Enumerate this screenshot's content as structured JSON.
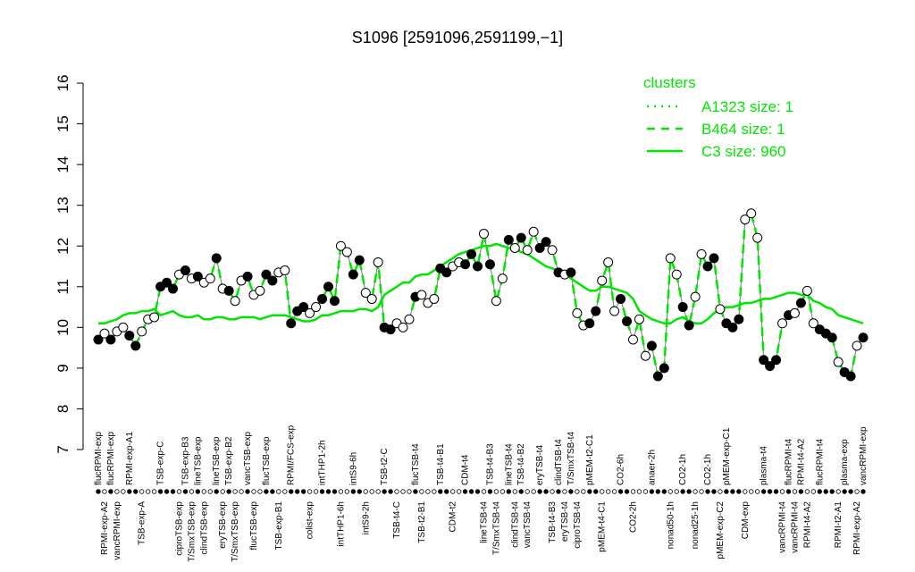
{
  "chart_data": {
    "type": "line",
    "title": "S1096 [2591096,2591199,−1]",
    "categories": [
      "flucRPMI-exp",
      "RPMI-exp-A2",
      "flucRPMI-exp",
      "vancRPMI-exp",
      null,
      "RPMI-exp-A1",
      null,
      "TSB-exp-A",
      null,
      null,
      "TSB-exp-C",
      null,
      null,
      "ciproTSB-exp",
      "TSB-exp-B3",
      "T/SmxTSB-exp",
      "lineTSB-exp",
      "clindTSB-exp",
      null,
      "lineTSB-exp",
      "eryTSB-exp",
      "TSB-exp-B2",
      "T/SmxTSB-exp",
      null,
      "vancTSB-exp",
      "flucTSB-exp",
      null,
      "flucTSB-exp",
      null,
      "TSB-exp-B1",
      null,
      "RPMI/FCS-exp",
      null,
      null,
      "colist-exp",
      null,
      "intTHP1-2h",
      null,
      null,
      "intTHP1-6h",
      null,
      "intS9-6h",
      null,
      "intS9-2h",
      null,
      null,
      "TSB-t2-C",
      null,
      "TSB-t4-C",
      null,
      null,
      "flucTSB-t4",
      "TSB-t2-B1",
      null,
      null,
      "TSB-t4-B1",
      null,
      "CDM-t2",
      null,
      "CDM-t4",
      null,
      null,
      "lineTSB-t4",
      "TSB-t4-B3",
      "T/SmxTSB-t4",
      null,
      "lineTSB-t4",
      "clindTSB-t4",
      "TSB-t4-B2",
      "vancTSB-t4",
      null,
      "eryTSB-t4",
      null,
      "TSB-t4-B3",
      "clindTSB-t4",
      "eryTSB-t4",
      "T/SmxTSB-t4",
      "ciproTSB-t4",
      null,
      "pMEM-t2-C1",
      null,
      "pMEM-t4-C1",
      null,
      null,
      "CO2-6h",
      null,
      "CO2-2h",
      null,
      null,
      "anaer-2h",
      null,
      null,
      "nonad50-1h",
      null,
      "CO2-1h",
      null,
      "nonad25-1h",
      null,
      "CO2-1h",
      null,
      "pMEM-exp-C2",
      "pMEM-exp-C1",
      null,
      null,
      "CDM-exp",
      null,
      null,
      "plasma-t4",
      null,
      null,
      "vancRPMI-t4",
      "flucRPMI-t4",
      "vancRPMI-t4",
      "RPMI-t4-A2",
      "RPMI-t4-A2",
      null,
      "flucRPMI-t4",
      null,
      null,
      "RPMI-t2-A1",
      "plasma-exp",
      null,
      "RPMI-exp-A2",
      "vancRPMI-exp"
    ],
    "series": [
      {
        "name": "A1323 size: 1",
        "color": "#00e600",
        "linestyle": "dotted",
        "values": [
          9.7,
          9.85,
          9.7,
          9.9,
          10.0,
          9.8,
          9.55,
          9.9,
          10.2,
          10.25,
          11.0,
          11.1,
          10.95,
          11.3,
          11.4,
          11.2,
          11.25,
          11.1,
          11.2,
          11.7,
          10.95,
          10.9,
          10.65,
          11.15,
          11.25,
          10.8,
          10.9,
          11.3,
          11.15,
          11.35,
          11.4,
          10.1,
          10.4,
          10.5,
          10.35,
          10.5,
          10.7,
          11.0,
          10.65,
          12.0,
          11.85,
          11.3,
          11.65,
          10.85,
          10.7,
          11.6,
          10.0,
          9.95,
          10.1,
          10.0,
          10.2,
          10.75,
          10.8,
          10.6,
          10.7,
          11.45,
          11.35,
          11.5,
          11.6,
          11.55,
          11.8,
          11.5,
          12.3,
          11.55,
          10.65,
          11.2,
          12.15,
          11.95,
          12.2,
          11.9,
          12.35,
          11.95,
          12.1,
          11.9,
          11.35,
          11.3,
          11.35,
          10.35,
          10.05,
          10.1,
          10.4,
          11.15,
          11.6,
          10.4,
          10.7,
          10.15,
          9.7,
          10.2,
          9.3,
          9.55,
          8.8,
          9.0,
          11.7,
          11.3,
          10.5,
          10.05,
          10.75,
          11.8,
          11.5,
          11.7,
          10.45,
          10.1,
          10.0,
          10.2,
          12.65,
          12.8,
          12.2,
          9.2,
          9.05,
          9.2,
          10.1,
          10.3,
          10.35,
          10.6,
          10.9,
          10.1,
          9.95,
          9.85,
          9.75,
          9.15,
          8.9,
          8.8,
          9.55,
          9.75
        ]
      },
      {
        "name": "B464 size: 1",
        "color": "#00e600",
        "linestyle": "dashed",
        "values": [
          9.7,
          9.85,
          9.7,
          9.9,
          10.0,
          9.8,
          9.55,
          9.9,
          10.2,
          10.25,
          11.0,
          11.1,
          10.95,
          11.3,
          11.4,
          11.2,
          11.25,
          11.1,
          11.2,
          11.7,
          10.95,
          10.9,
          10.65,
          11.15,
          11.25,
          10.8,
          10.9,
          11.3,
          11.15,
          11.35,
          11.4,
          10.1,
          10.4,
          10.5,
          10.35,
          10.5,
          10.7,
          11.0,
          10.65,
          12.0,
          11.85,
          11.3,
          11.65,
          10.85,
          10.7,
          11.6,
          10.0,
          9.95,
          10.1,
          10.0,
          10.2,
          10.75,
          10.8,
          10.6,
          10.7,
          11.45,
          11.35,
          11.5,
          11.6,
          11.55,
          11.8,
          11.5,
          12.3,
          11.55,
          10.65,
          11.2,
          12.15,
          11.95,
          12.2,
          11.9,
          12.35,
          11.95,
          12.1,
          11.9,
          11.35,
          11.3,
          11.35,
          10.35,
          10.05,
          10.1,
          10.4,
          11.15,
          11.6,
          10.4,
          10.7,
          10.15,
          9.7,
          10.2,
          9.3,
          9.55,
          8.8,
          9.0,
          11.7,
          11.3,
          10.5,
          10.05,
          10.75,
          11.8,
          11.5,
          11.7,
          10.45,
          10.1,
          10.0,
          10.2,
          12.65,
          12.8,
          12.2,
          9.2,
          9.05,
          9.2,
          10.1,
          10.3,
          10.35,
          10.6,
          10.9,
          10.1,
          9.95,
          9.85,
          9.75,
          9.15,
          8.9,
          8.8,
          9.55,
          9.75
        ]
      },
      {
        "name": "C3 size: 960",
        "color": "#00e600",
        "linestyle": "solid",
        "values": [
          10.1,
          10.1,
          10.15,
          10.2,
          10.3,
          10.35,
          10.35,
          10.4,
          10.4,
          10.45,
          10.3,
          10.35,
          10.4,
          10.3,
          10.25,
          10.25,
          10.3,
          10.2,
          10.2,
          10.25,
          10.25,
          10.2,
          10.2,
          10.25,
          10.25,
          10.25,
          10.2,
          10.25,
          10.3,
          10.3,
          10.3,
          10.25,
          10.2,
          10.15,
          10.15,
          10.2,
          10.3,
          10.3,
          10.35,
          10.4,
          10.4,
          10.4,
          10.45,
          10.45,
          10.4,
          10.5,
          10.8,
          10.9,
          11.0,
          11.1,
          11.1,
          11.25,
          11.3,
          11.3,
          11.4,
          11.5,
          11.6,
          11.7,
          11.8,
          11.85,
          11.9,
          11.95,
          12.0,
          12.0,
          12.05,
          12.0,
          11.95,
          11.95,
          11.85,
          11.8,
          11.7,
          11.6,
          11.5,
          11.45,
          11.4,
          11.35,
          11.2,
          11.1,
          11.0,
          10.9,
          10.9,
          11.0,
          11.0,
          10.95,
          10.9,
          10.85,
          10.7,
          10.4,
          10.3,
          10.2,
          10.15,
          10.1,
          10.1,
          10.2,
          10.25,
          10.15,
          10.1,
          10.1,
          10.2,
          10.35,
          10.45,
          10.5,
          10.5,
          10.55,
          10.6,
          10.6,
          10.65,
          10.7,
          10.7,
          10.75,
          10.8,
          10.85,
          10.85,
          10.8,
          10.8,
          10.65,
          10.6,
          10.5,
          10.45,
          10.3,
          10.25,
          10.2,
          10.15,
          10.1
        ]
      }
    ],
    "ylim": [
      7,
      16
    ],
    "yticks": [
      7,
      8,
      9,
      10,
      11,
      12,
      13,
      14,
      15,
      16
    ],
    "legend_title": "clusters",
    "legend": "top-right"
  }
}
